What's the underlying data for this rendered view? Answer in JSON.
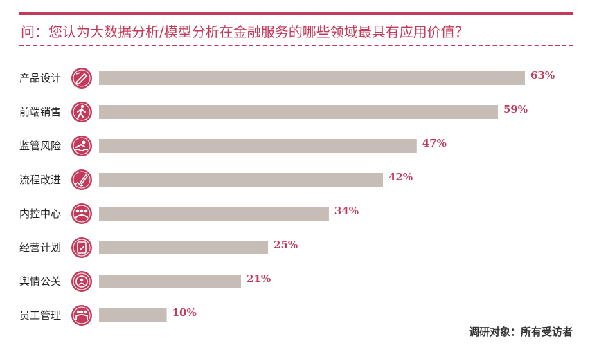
{
  "title": "问：您认为大数据分析/模型分析在金融服务的哪些领域最具有应用价值？",
  "footnote": "调研对象：所有受访者",
  "colors": {
    "accent": "#c33a5a",
    "bar": "#c5bdb6",
    "text": "#222222"
  },
  "chart_data": {
    "type": "bar",
    "orientation": "horizontal",
    "categories": [
      "产品设计",
      "前端销售",
      "监管风险",
      "流程改进",
      "内控中心",
      "经营计划",
      "舆情公关",
      "员工管理"
    ],
    "values": [
      63,
      59,
      47,
      42,
      34,
      25,
      21,
      10
    ],
    "value_labels": [
      "63%",
      "59%",
      "47%",
      "42%",
      "34%",
      "25%",
      "21%",
      "10%"
    ],
    "icons": [
      "pencil-ruler-icon",
      "walking-person-icon",
      "swimmer-icon",
      "signature-pen-icon",
      "team-hands-icon",
      "clipboard-check-icon",
      "target-people-icon",
      "group-people-icon"
    ],
    "xlim": [
      0,
      63
    ],
    "grid": false,
    "legend": "none"
  }
}
